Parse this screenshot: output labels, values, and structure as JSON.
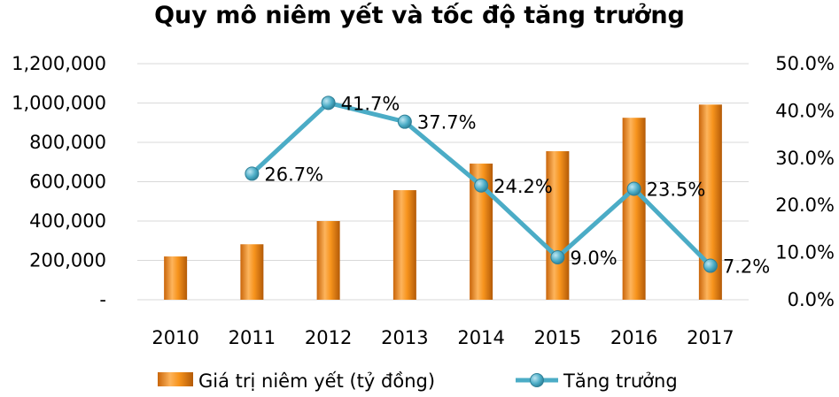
{
  "chart_data": {
    "type": "bar",
    "title": "Quy mô niêm yết và tốc độ tăng trưởng",
    "categories": [
      "2010",
      "2011",
      "2012",
      "2013",
      "2014",
      "2015",
      "2016",
      "2017"
    ],
    "series": [
      {
        "name": "Giá trị niêm yết (tỷ đồng)",
        "type": "bar",
        "axis": "left",
        "color": "#F7941D",
        "values": [
          220000,
          282000,
          400000,
          557000,
          692000,
          755000,
          925000,
          992000
        ]
      },
      {
        "name": "Tăng trưởng",
        "type": "line",
        "axis": "right",
        "color": "#4BACC6",
        "values": [
          null,
          26.7,
          41.7,
          37.7,
          24.2,
          9.0,
          23.5,
          7.2
        ],
        "labels": [
          "",
          "26.7%",
          "41.7%",
          "37.7%",
          "24.2%",
          "9.0%",
          "23.5%",
          "7.2%"
        ]
      }
    ],
    "y_left": {
      "ylim": [
        0,
        1200000
      ],
      "ticks": [
        0,
        200000,
        400000,
        600000,
        800000,
        1000000,
        1200000
      ],
      "tick_labels": [
        "-",
        "200,000",
        "400,000",
        "600,000",
        "800,000",
        "1,000,000",
        "1,200,000"
      ]
    },
    "y_right": {
      "ylim": [
        0,
        50
      ],
      "ticks": [
        0,
        10,
        20,
        30,
        40,
        50
      ],
      "tick_labels": [
        "0.0%",
        "10.0%",
        "20.0%",
        "30.0%",
        "40.0%",
        "50.0%"
      ]
    },
    "grid": true,
    "legend": "bottom",
    "gridline_color": "#D9D9D9"
  }
}
